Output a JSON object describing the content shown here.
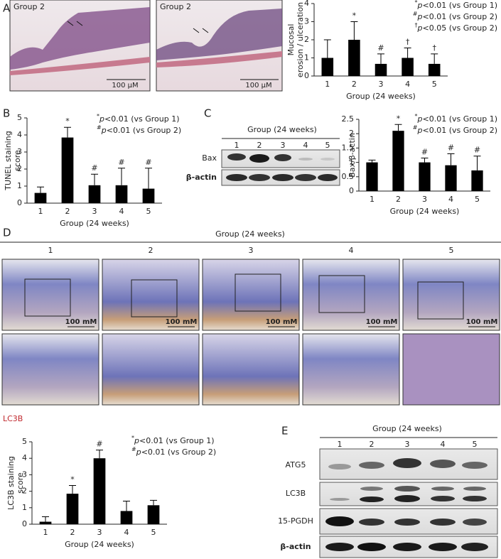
{
  "chart_data": [
    {
      "type": "bar",
      "ylabel": [
        "Mucosal",
        "erosion / ulceration"
      ],
      "xlabel": "Group (24 weeks)",
      "categories": [
        "1",
        "2",
        "3",
        "4",
        "5"
      ],
      "values": [
        1,
        2,
        0.67,
        1,
        0.67
      ],
      "errors": [
        1,
        1,
        0.55,
        0.55,
        0.55
      ],
      "annotations": [
        null,
        "*",
        "#",
        "†",
        "†"
      ],
      "color": "#000000",
      "ylim": [
        0,
        4
      ],
      "yticks": [
        0,
        1,
        2,
        3,
        4
      ],
      "notes": [
        {
          "symbol": "*",
          "p": "p",
          "text": "<0.01 (vs Group 1)"
        },
        {
          "symbol": "#",
          "p": "p",
          "text": "<0.01 (vs Group 2)"
        },
        {
          "symbol": "†",
          "p": "p",
          "text": "<0.05 (vs Group 2)"
        }
      ]
    },
    {
      "type": "bar",
      "ylabel": [
        "TUNEL staining",
        "score"
      ],
      "xlabel": "Group (24 weeks)",
      "categories": [
        "1",
        "2",
        "3",
        "4",
        "5"
      ],
      "values": [
        0.6,
        3.85,
        1.05,
        1.05,
        0.85
      ],
      "errors": [
        0.35,
        0.6,
        0.65,
        1.0,
        1.2
      ],
      "annotations": [
        null,
        "*",
        "#",
        "#",
        "#"
      ],
      "color": "#000000",
      "ylim": [
        0,
        5
      ],
      "yticks": [
        0,
        1,
        2,
        3,
        4,
        5
      ],
      "notes": [
        {
          "symbol": "*",
          "p": "p",
          "text": "<0.01 (vs Group 1)"
        },
        {
          "symbol": "#",
          "p": "p",
          "text": "<0.01 (vs Group 2)"
        }
      ]
    },
    {
      "type": "bar",
      "ylabel": [
        "Bax/β-actin"
      ],
      "xlabel": "Group (24 weeks)",
      "categories": [
        "1",
        "2",
        "3",
        "4",
        "5"
      ],
      "values": [
        1,
        2.1,
        1.0,
        0.9,
        0.72
      ],
      "errors": [
        0.08,
        0.22,
        0.15,
        0.4,
        0.5
      ],
      "annotations": [
        null,
        "*",
        "#",
        "#",
        "#"
      ],
      "color": "#000000",
      "ylim": [
        0,
        2.5
      ],
      "yticks": [
        0,
        0.5,
        1,
        1.5,
        2,
        2.5
      ],
      "notes": [
        {
          "symbol": "*",
          "p": "p",
          "text": "<0.01 (vs Group 1)"
        },
        {
          "symbol": "#",
          "p": "p",
          "text": "<0.01 (vs Group 2)"
        }
      ]
    },
    {
      "type": "bar",
      "ylabel": [
        "LC3B staining",
        "score"
      ],
      "xlabel": "Group (24 weeks)",
      "categories": [
        "1",
        "2",
        "3",
        "4",
        "5"
      ],
      "values": [
        0.15,
        1.85,
        4.0,
        0.8,
        1.15
      ],
      "errors": [
        0.3,
        0.5,
        0.5,
        0.6,
        0.3
      ],
      "annotations": [
        null,
        "*",
        "#",
        null,
        null
      ],
      "color": "#000000",
      "ylim": [
        0,
        5
      ],
      "yticks": [
        0,
        1,
        2,
        3,
        4,
        5
      ],
      "notes": [
        {
          "symbol": "*",
          "p": "p",
          "text": "<0.01 (vs Group 1)"
        },
        {
          "symbol": "#",
          "p": "p",
          "text": "<0.01 (vs Group 2)"
        }
      ]
    }
  ],
  "panel_labels": [
    "A",
    "B",
    "C",
    "D",
    "E"
  ],
  "panel_a_images": [
    {
      "caption": "Group 2",
      "scale": "100 μM"
    },
    {
      "caption": "Group 2",
      "scale": "100 μM"
    }
  ],
  "blot_c": {
    "title": "Group (24 weeks)",
    "lanes": [
      "1",
      "2",
      "3",
      "4",
      "5"
    ],
    "rows": [
      "Bax",
      "β-actin"
    ]
  },
  "panel_d": {
    "title": "Group (24 weeks)",
    "columns": [
      "1",
      "2",
      "3",
      "4",
      "5"
    ],
    "scale": "100 mM",
    "marker": "LC3B"
  },
  "blot_e": {
    "title": "Group (24 weeks)",
    "lanes": [
      "1",
      "2",
      "3",
      "4",
      "5"
    ],
    "rows": [
      "ATG5",
      "LC3B",
      "15-PGDH",
      "β-actin"
    ]
  }
}
